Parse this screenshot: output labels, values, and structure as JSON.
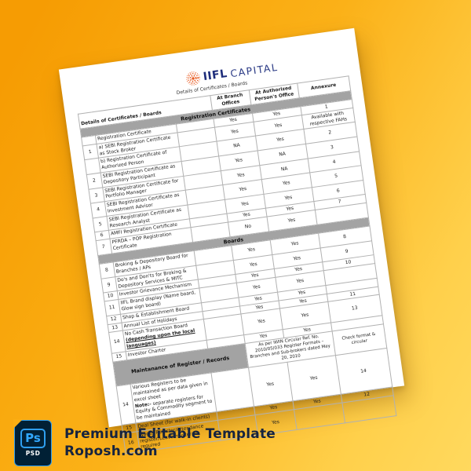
{
  "background": {
    "gradient_from": "#f69c03",
    "gradient_to": "#ffd95e"
  },
  "page": {
    "logo": {
      "brand_bold": "IIFL",
      "brand_light": "CAPITAL",
      "logo_color": "#e95a1f",
      "text_color": "#1e2d7b"
    },
    "title": "Details of Certificates / Boards",
    "table": {
      "header": {
        "left": "Details of Certificates / Boards",
        "branch": "At Branch Offices",
        "authorized": "At Authorized Person's Office",
        "annexure": "Annexure"
      },
      "sections": [
        {
          "label": "Registration Certificates",
          "type": "full",
          "rows": [
            {
              "no": "",
              "desc": "Registration Certificate",
              "branch": "Yes",
              "auth": "Yes",
              "annex": "1"
            },
            {
              "no": "1",
              "desc": "a)  SEBI Registration Certificate as Stock Broker",
              "branch": "Yes",
              "auth": "Yes",
              "annex": "Available with respective FAHs"
            },
            {
              "no": "",
              "desc": "b)  Registration Certificate of Authorized Person",
              "branch": "NA",
              "auth": "Yes",
              "annex": "2"
            },
            {
              "no": "2",
              "desc": "SEBI Registration Certificate as Depository Participant",
              "branch": "Yes",
              "auth": "NA",
              "annex": "3"
            },
            {
              "no": "3",
              "desc": "SEBI Registration Certificate for Portfolio Manager",
              "branch": "Yes",
              "auth": "NA",
              "annex": "4"
            },
            {
              "no": "4",
              "desc": "SEBI Registration Certificate as Investment Advisor",
              "branch": "Yes",
              "auth": "Yes",
              "annex": "5"
            },
            {
              "no": "5",
              "desc": "SEBI Registration Certificate as Research Analyst",
              "branch": "Yes",
              "auth": "Yes",
              "annex": "6"
            },
            {
              "no": "6",
              "desc": "AMFI Registration Certificate",
              "branch": "Yes",
              "auth": "Yes",
              "annex": "7"
            },
            {
              "no": "7",
              "desc": "PFRDA – POP Registration Certificate",
              "branch": "No",
              "auth": "Yes",
              "annex": ""
            }
          ]
        },
        {
          "label": "Boards",
          "type": "full",
          "rows": [
            {
              "no": "8",
              "desc": "Broking & Depository Board for Branches / APs",
              "branch": "Yes",
              "auth": "Yes",
              "annex": "8"
            },
            {
              "no": "9",
              "desc": "Do's and Don'ts for Broking & Depository Services & MITC",
              "branch": "Yes",
              "auth": "Yes",
              "annex": "9"
            },
            {
              "no": "10",
              "desc": "Investor Grievance Mechanism",
              "branch": "Yes",
              "auth": "Yes",
              "annex": "10"
            },
            {
              "no": "11",
              "desc": "IIFL Brand display (Name board, Glow sign board)",
              "branch": "Yes",
              "auth": "Yes",
              "annex": ""
            },
            {
              "no": "12",
              "desc": "Shop & Establishment Board",
              "branch": "Yes",
              "auth": "Yes",
              "annex": ""
            },
            {
              "no": "13",
              "desc": "Annual List of Holidays",
              "branch": "Yes",
              "auth": "Yes",
              "annex": "11"
            },
            {
              "no": "14",
              "desc": "No Cash Transaction Board",
              "desc_bold_underline": "(depending upon the local languages)",
              "branch": "Yes",
              "auth": "Yes",
              "annex": "13"
            },
            {
              "no": "15",
              "desc": "Investor Charter",
              "branch": "Yes",
              "auth": "Yes",
              "annex": ""
            }
          ]
        },
        {
          "label": "Maintanance of Register / Records",
          "type": "split",
          "circular_ref": "As per IWIN Circular Ref. No. 2010/05/033 Register Formats – Branches and Sub-brokers dated May 20, 2010",
          "annex_note": "Check format & circular",
          "rows": [
            {
              "no": "14",
              "desc": "Various Registers to be maintained as per data given in excel sheet",
              "note_label": "Note:-",
              "note_text": " separate registers for Equity & Commodity segment to be maintained",
              "branch": "Yes",
              "auth": "Yes",
              "annex": "14"
            },
            {
              "no": "15",
              "desc": "Deal Sheet (for walk-in clients)",
              "branch": "Yes",
              "auth": "Yes",
              "annex": "12"
            },
            {
              "no": "16",
              "desc": "Wages Register/Attendance register/Leave muster as required",
              "branch": "Yes",
              "auth": "",
              "annex": ""
            }
          ]
        }
      ]
    }
  },
  "footer": {
    "icon_label_ps": "Ps",
    "icon_label_psd": "PSD",
    "line1": "Premium Editable Template",
    "line2": "Roposh.com",
    "accent_color": "#31a8ff",
    "icon_bg": "#012035",
    "text_color": "#15233f"
  }
}
